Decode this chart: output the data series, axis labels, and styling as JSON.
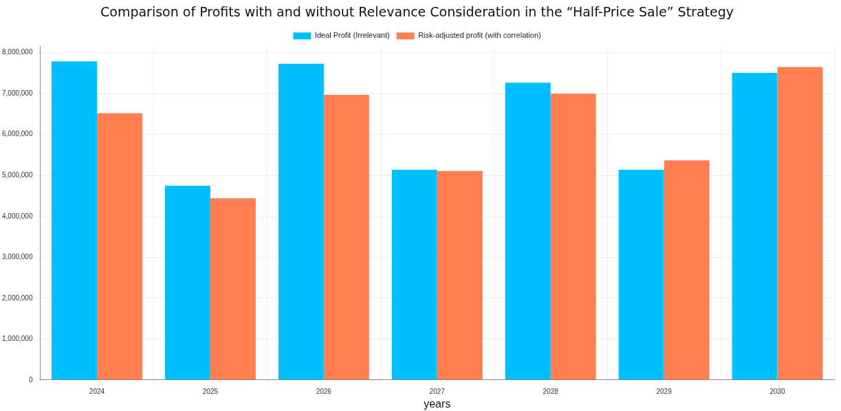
{
  "chart_data": {
    "type": "bar",
    "title": "Comparison of Profits with and without Relevance Consideration in the “Half-Price Sale” Strategy",
    "xlabel": "years",
    "categories": [
      "2024",
      "2025",
      "2026",
      "2027",
      "2028",
      "2029",
      "2030"
    ],
    "series": [
      {
        "name": "Ideal Profit (Irrelevant)",
        "color": "#00bfff",
        "values": [
          7790000,
          4750000,
          7730000,
          5140000,
          7270000,
          5140000,
          7510000
        ]
      },
      {
        "name": "Risk-adjusted profit (with correlation)",
        "color": "#ff7f50",
        "values": [
          6520000,
          4440000,
          6970000,
          5110000,
          7000000,
          5370000,
          7650000
        ]
      }
    ],
    "ylim": [
      0,
      8150000
    ],
    "yticks": [
      0,
      {
        "value": 1000000,
        "label": "1,000,000"
      },
      {
        "value": 2000000,
        "label": "2,000,000"
      },
      {
        "value": 3000000,
        "label": "3,000,000"
      },
      {
        "value": 4000000,
        "label": "4,000,000"
      },
      {
        "value": 5000000,
        "label": "5,000,000"
      },
      {
        "value": 6000000,
        "label": "6,000,000"
      },
      {
        "value": 7000000,
        "label": "7,000,000"
      },
      {
        "value": 8000000,
        "label": "8,000,000"
      }
    ],
    "grid": true,
    "legend": "top"
  }
}
